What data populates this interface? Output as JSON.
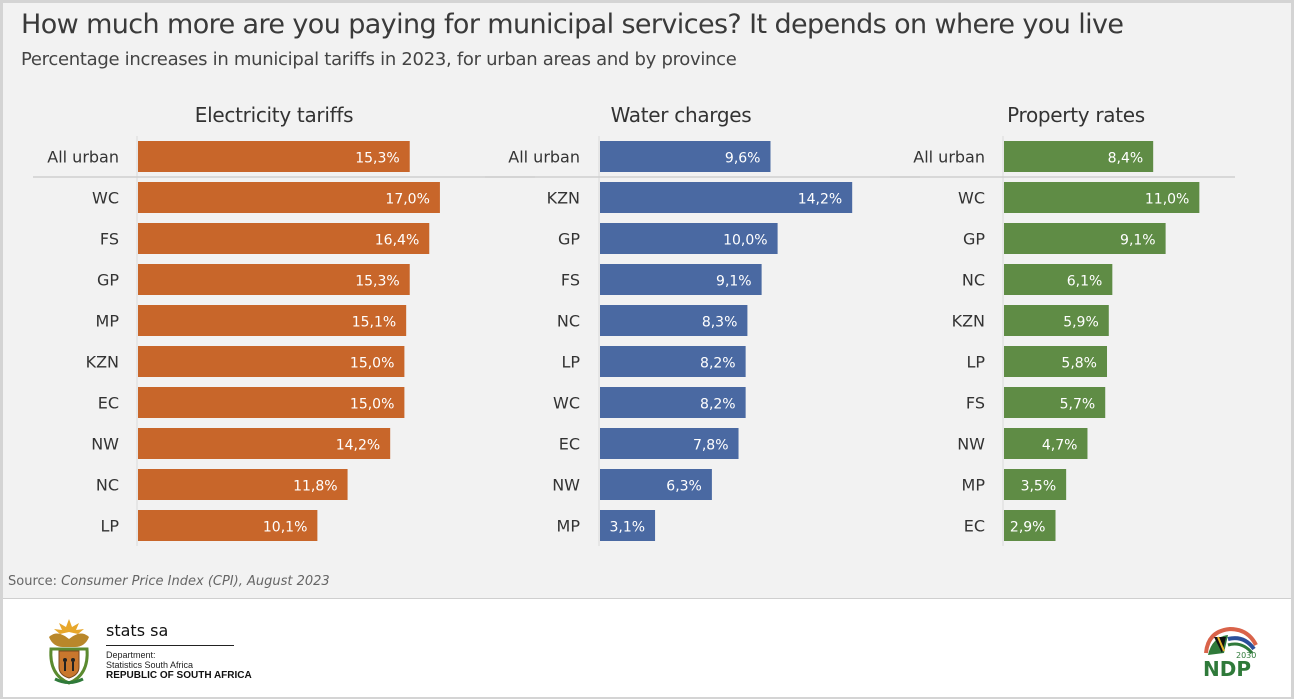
{
  "header": {
    "title": "How much more are you paying for municipal services? It depends on where you live",
    "subtitle": "Percentage increases in municipal tariffs in 2023, for urban areas and by province"
  },
  "source": {
    "label": "Source: ",
    "text": "Consumer Price Index (CPI), August 2023"
  },
  "footer": {
    "org_name": "stats sa",
    "dept_line1": "Department:",
    "dept_line2": "Statistics South Africa",
    "country": "REPUBLIC OF SOUTH AFRICA",
    "ndp_year": "2030",
    "ndp_text": "NDP"
  },
  "chart_data": [
    {
      "type": "bar",
      "orientation": "horizontal",
      "title": "Electricity tariffs",
      "color": "#c8662a",
      "categories": [
        "All urban",
        "WC",
        "FS",
        "GP",
        "MP",
        "KZN",
        "EC",
        "NW",
        "NC",
        "LP"
      ],
      "values": [
        15.3,
        17.0,
        16.4,
        15.3,
        15.1,
        15.0,
        15.0,
        14.2,
        11.8,
        10.1
      ],
      "labels": [
        "15,3%",
        "17,0%",
        "16,4%",
        "15,3%",
        "15,1%",
        "15,0%",
        "15,0%",
        "14,2%",
        "11,8%",
        "10,1%"
      ],
      "xlabel": "",
      "ylabel": "",
      "unit": "%"
    },
    {
      "type": "bar",
      "orientation": "horizontal",
      "title": "Water charges",
      "color": "#4a69a2",
      "categories": [
        "All urban",
        "KZN",
        "GP",
        "FS",
        "NC",
        "LP",
        "WC",
        "EC",
        "NW",
        "MP"
      ],
      "values": [
        9.6,
        14.2,
        10.0,
        9.1,
        8.3,
        8.2,
        8.2,
        7.8,
        6.3,
        3.1
      ],
      "labels": [
        "9,6%",
        "14,2%",
        "10,0%",
        "9,1%",
        "8,3%",
        "8,2%",
        "8,2%",
        "7,8%",
        "6,3%",
        "3,1%"
      ],
      "xlabel": "",
      "ylabel": "",
      "unit": "%"
    },
    {
      "type": "bar",
      "orientation": "horizontal",
      "title": "Property rates",
      "color": "#5f8c45",
      "categories": [
        "All urban",
        "WC",
        "GP",
        "NC",
        "KZN",
        "LP",
        "FS",
        "NW",
        "MP",
        "EC"
      ],
      "values": [
        8.4,
        11.0,
        9.1,
        6.1,
        5.9,
        5.8,
        5.7,
        4.7,
        3.5,
        2.9
      ],
      "labels": [
        "8,4%",
        "11,0%",
        "9,1%",
        "6,1%",
        "5,9%",
        "5,8%",
        "5,7%",
        "4,7%",
        "3,5%",
        "2,9%"
      ],
      "xlabel": "",
      "ylabel": "",
      "unit": "%"
    }
  ]
}
